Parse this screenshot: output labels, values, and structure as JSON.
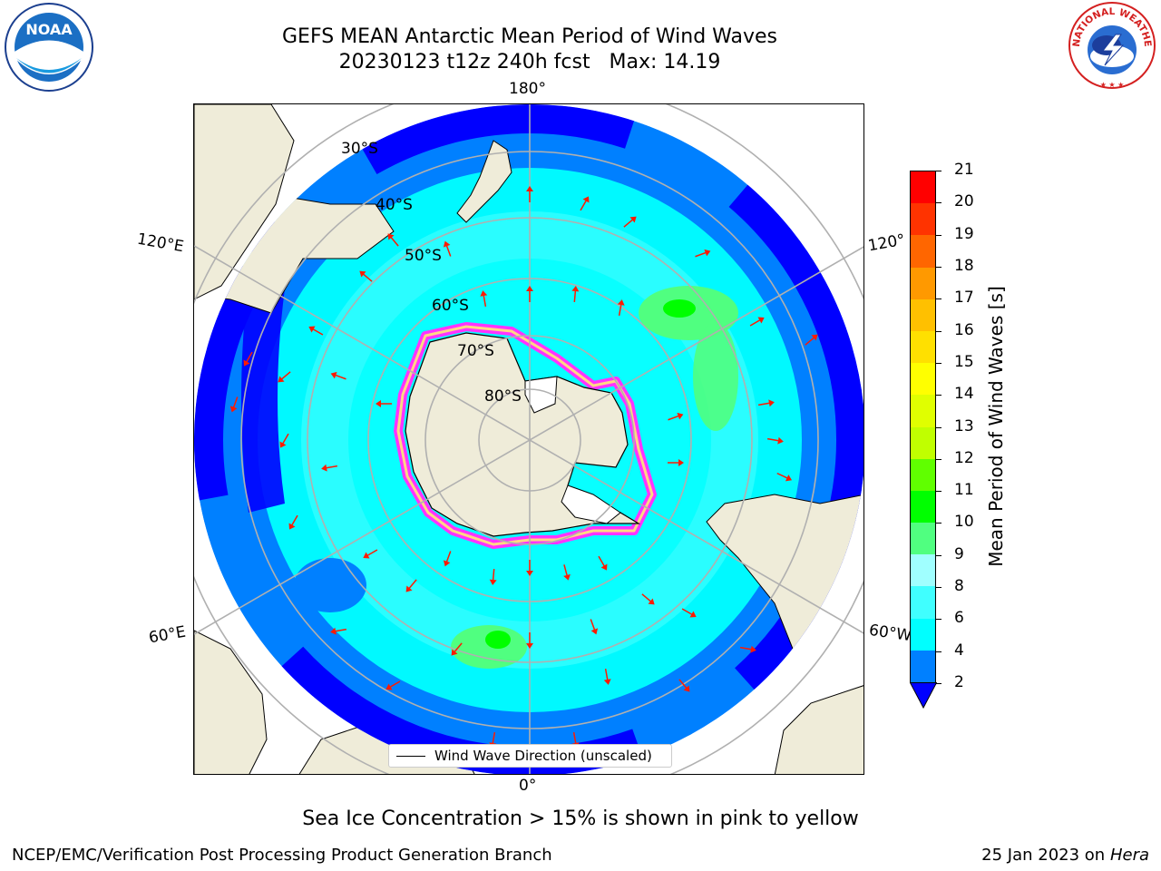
{
  "title": {
    "line1": "GEFS MEAN Antarctic Mean Period of Wind Waves",
    "line2": "20230123 t12z 240h fcst   Max: 14.19"
  },
  "map": {
    "projection": "south polar stereographic",
    "longitude_labels": {
      "top": "180°",
      "bottom": "0°",
      "left_upper": "120°E",
      "left_lower": "60°E",
      "right_upper": "120°",
      "right_lower": "60°W"
    },
    "latitude_labels": [
      "30°S",
      "40°S",
      "50°S",
      "60°S",
      "70°S",
      "80°S"
    ],
    "colors": {
      "land": "#efecd9",
      "ice_shelf": "#ffffff",
      "graticule": "#b0b0b0",
      "arrows": "#ff1a00",
      "sea_ice_edge": "#ff33ff"
    },
    "legend": {
      "label": "Wind Wave Direction (unscaled)"
    },
    "max_value": 14.19
  },
  "colorbar": {
    "label": "Mean Period of Wind Waves [s]",
    "ticks": [
      "2",
      "4",
      "6",
      "8",
      "9",
      "10",
      "11",
      "12",
      "13",
      "14",
      "15",
      "16",
      "17",
      "18",
      "19",
      "20",
      "21"
    ],
    "extend": "min",
    "under_color": "#0000ff",
    "colors": [
      "#0080ff",
      "#00ffff",
      "#40ffff",
      "#a0ffff",
      "#50ff80",
      "#00ff00",
      "#60ff00",
      "#c0ff00",
      "#e0ff00",
      "#ffff00",
      "#ffe000",
      "#ffc000",
      "#ff9900",
      "#ff6600",
      "#ff3300",
      "#ff0000"
    ]
  },
  "notes": {
    "sea_ice": "Sea Ice Concentration > 15% is shown in pink to yellow"
  },
  "footer": {
    "left": "NCEP/EMC/Verification Post Processing Product Generation Branch",
    "date": "25 Jan 2023 on ",
    "host": "Hera"
  },
  "logos": {
    "noaa": "NOAA",
    "nws": "NATIONAL WEATHER SERVICE"
  }
}
